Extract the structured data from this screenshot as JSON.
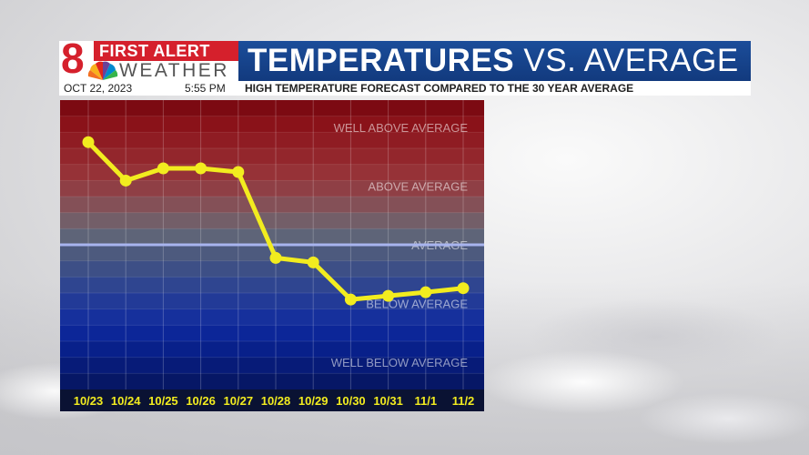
{
  "header": {
    "brand_line1": "FIRST ALERT",
    "brand_line2": "WEATHER",
    "brand_number": "8",
    "title_bold": "TEMPERATURES",
    "title_rest": "VS. AVERAGE",
    "date": "OCT 22, 2023",
    "time": "5:55 PM",
    "subtitle": "HIGH TEMPERATURE FORECAST COMPARED TO THE 30 YEAR AVERAGE"
  },
  "colors": {
    "title_bar": "#1b4d9a",
    "brand_red": "#d5202c",
    "line": "#f2ec1f",
    "average_line": "#a8b4ee"
  },
  "chart_data": {
    "type": "line",
    "categories": [
      "10/23",
      "10/24",
      "10/25",
      "10/26",
      "10/27",
      "10/28",
      "10/29",
      "10/30",
      "10/31",
      "11/1",
      "11/2"
    ],
    "values": [
      2.27,
      1.42,
      1.69,
      1.69,
      1.61,
      -0.29,
      -0.39,
      -1.21,
      -1.13,
      -1.05,
      -0.96
    ],
    "ylim": [
      -3.2,
      3.2
    ],
    "average_value": 0,
    "zones": [
      {
        "label": "WELL ABOVE AVERAGE",
        "value": 2.6
      },
      {
        "label": "ABOVE AVERAGE",
        "value": 1.3
      },
      {
        "label": "AVERAGE",
        "value": 0
      },
      {
        "label": "BELOW AVERAGE",
        "value": -1.3
      },
      {
        "label": "WELL BELOW AVERAGE",
        "value": -2.6
      }
    ],
    "grid": true,
    "legend": "none"
  }
}
